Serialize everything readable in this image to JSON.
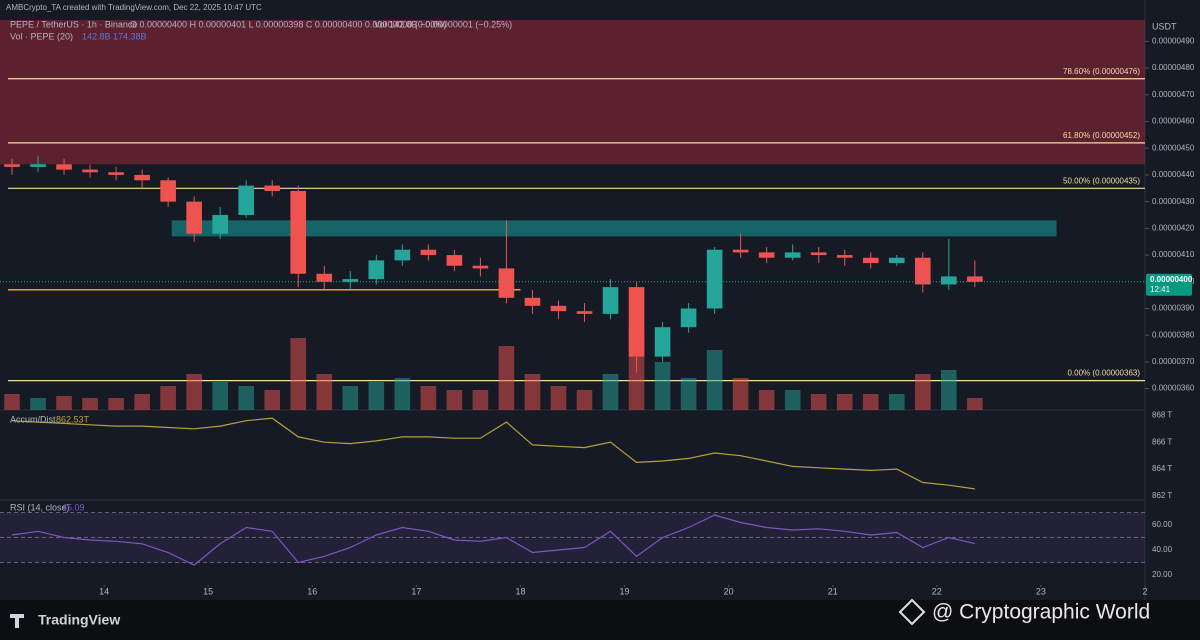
{
  "chart_data": {
    "type": "candlestick",
    "attribution": "AMBCrypto_TA created with TradingView.com, Dec 22, 2025 10:47 UTC",
    "symbol": "PEPE / TetherUS · 1h · Binance",
    "ohlc_header": "O 0.00000400 H 0.00000401 L 0.00000398 C 0.00000400 0.00000000 (0.00%)",
    "vol_header": "Vol 142.8B −0.00000001 (−0.25%)",
    "vol_legend": "Vol · PEPE (20)",
    "vol_legend_values": "142.8B 174.38B",
    "currency": "USDT",
    "colors": {
      "up": "#26a69a",
      "down": "#ef5350",
      "accum": "#b8a13a",
      "rsi": "#7e57c2"
    },
    "xlim": [
      13,
      24
    ],
    "xticks": [
      14,
      15,
      16,
      17,
      18,
      19,
      20,
      21,
      22,
      23,
      {
        "value": 24,
        "label": "2"
      }
    ],
    "ylim": [
      3.52e-06,
      4.98e-06
    ],
    "yticks": [
      {
        "value": 4.9e-06,
        "label": "0.00000490"
      },
      {
        "value": 4.8e-06,
        "label": "0.00000480"
      },
      {
        "value": 4.7e-06,
        "label": "0.00000470"
      },
      {
        "value": 4.6e-06,
        "label": "0.00000460"
      },
      {
        "value": 4.5e-06,
        "label": "0.00000450"
      },
      {
        "value": 4.4e-06,
        "label": "0.00000440"
      },
      {
        "value": 4.3e-06,
        "label": "0.00000430"
      },
      {
        "value": 4.2e-06,
        "label": "0.00000420"
      },
      {
        "value": 4.1e-06,
        "label": "0.00000410"
      },
      {
        "value": 4e-06,
        "label": "0.00000400"
      },
      {
        "value": 3.9e-06,
        "label": "0.00000390"
      },
      {
        "value": 3.8e-06,
        "label": "0.00000380"
      },
      {
        "value": 3.7e-06,
        "label": "0.00000370"
      },
      {
        "value": 3.6e-06,
        "label": "0.00000360"
      }
    ],
    "x": [
      13,
      13.25,
      13.5,
      13.75,
      14,
      14.25,
      14.5,
      14.75,
      15,
      15.25,
      15.5,
      15.75,
      16,
      16.25,
      16.5,
      16.75,
      17,
      17.25,
      17.5,
      17.75,
      18,
      18.25,
      18.5,
      18.75,
      19,
      19.25,
      19.5,
      19.75,
      20,
      20.25,
      20.5,
      20.75,
      21,
      21.25,
      21.5,
      21.75,
      22,
      22.25
    ],
    "ohlc": [
      [
        4.44e-06,
        4.46e-06,
        4.4e-06,
        4.43e-06
      ],
      [
        4.43e-06,
        4.47e-06,
        4.41e-06,
        4.44e-06
      ],
      [
        4.44e-06,
        4.46e-06,
        4.4e-06,
        4.42e-06
      ],
      [
        4.42e-06,
        4.44e-06,
        4.39e-06,
        4.41e-06
      ],
      [
        4.41e-06,
        4.43e-06,
        4.38e-06,
        4.4e-06
      ],
      [
        4.4e-06,
        4.42e-06,
        4.35e-06,
        4.38e-06
      ],
      [
        4.38e-06,
        4.39e-06,
        4.28e-06,
        4.3e-06
      ],
      [
        4.3e-06,
        4.32e-06,
        4.15e-06,
        4.18e-06
      ],
      [
        4.18e-06,
        4.28e-06,
        4.16e-06,
        4.25e-06
      ],
      [
        4.25e-06,
        4.38e-06,
        4.24e-06,
        4.36e-06
      ],
      [
        4.36e-06,
        4.38e-06,
        4.32e-06,
        4.34e-06
      ],
      [
        4.34e-06,
        4.36e-06,
        3.98e-06,
        4.03e-06
      ],
      [
        4.03e-06,
        4.06e-06,
        3.97e-06,
        4e-06
      ],
      [
        4e-06,
        4.04e-06,
        3.97e-06,
        4.01e-06
      ],
      [
        4.01e-06,
        4.1e-06,
        3.99e-06,
        4.08e-06
      ],
      [
        4.08e-06,
        4.14e-06,
        4.06e-06,
        4.12e-06
      ],
      [
        4.12e-06,
        4.14e-06,
        4.08e-06,
        4.1e-06
      ],
      [
        4.1e-06,
        4.12e-06,
        4.04e-06,
        4.06e-06
      ],
      [
        4.06e-06,
        4.09e-06,
        4.02e-06,
        4.05e-06
      ],
      [
        4.05e-06,
        4.23e-06,
        3.92e-06,
        3.94e-06
      ],
      [
        3.94e-06,
        3.97e-06,
        3.88e-06,
        3.91e-06
      ],
      [
        3.91e-06,
        3.93e-06,
        3.86e-06,
        3.89e-06
      ],
      [
        3.89e-06,
        3.92e-06,
        3.85e-06,
        3.88e-06
      ],
      [
        3.88e-06,
        4.01e-06,
        3.86e-06,
        3.98e-06
      ],
      [
        3.98e-06,
        4e-06,
        3.66e-06,
        3.72e-06
      ],
      [
        3.72e-06,
        3.85e-06,
        3.7e-06,
        3.83e-06
      ],
      [
        3.83e-06,
        3.92e-06,
        3.81e-06,
        3.9e-06
      ],
      [
        3.9e-06,
        4.13e-06,
        3.88e-06,
        4.12e-06
      ],
      [
        4.12e-06,
        4.18e-06,
        4.09e-06,
        4.11e-06
      ],
      [
        4.11e-06,
        4.13e-06,
        4.07e-06,
        4.09e-06
      ],
      [
        4.09e-06,
        4.14e-06,
        4.08e-06,
        4.11e-06
      ],
      [
        4.11e-06,
        4.13e-06,
        4.07e-06,
        4.1e-06
      ],
      [
        4.1e-06,
        4.12e-06,
        4.06e-06,
        4.09e-06
      ],
      [
        4.09e-06,
        4.11e-06,
        4.05e-06,
        4.07e-06
      ],
      [
        4.07e-06,
        4.1e-06,
        4.06e-06,
        4.09e-06
      ],
      [
        4.09e-06,
        4.11e-06,
        3.96e-06,
        3.99e-06
      ],
      [
        3.99e-06,
        4.16e-06,
        3.97e-06,
        4.02e-06
      ],
      [
        4.02e-06,
        4.08e-06,
        3.98e-06,
        4e-06
      ]
    ],
    "volume": [
      400,
      300,
      350,
      300,
      300,
      400,
      600,
      900,
      700,
      600,
      500,
      1800,
      900,
      600,
      700,
      800,
      600,
      500,
      500,
      1600,
      900,
      600,
      500,
      900,
      2000,
      1200,
      800,
      1500,
      800,
      500,
      500,
      400,
      400,
      400,
      400,
      900,
      1000,
      300
    ],
    "zones": [
      {
        "from": 4.44e-06,
        "to": 4.98e-06,
        "x0": 13,
        "x1": 24,
        "color": "rgba(178,40,60,0.45)"
      },
      {
        "from": 4.17e-06,
        "to": 4.23e-06,
        "x0": 14.65,
        "x1": 23.15,
        "color": "rgba(20,150,150,0.6)"
      }
    ],
    "support": {
      "value": 3.97e-06,
      "x0": 13,
      "x1": 18,
      "color": "#f0a030"
    },
    "fib_levels": [
      {
        "value": 4.76e-06,
        "label": "78.60% (0.00000476)"
      },
      {
        "value": 4.52e-06,
        "label": "61.80% (0.00000452)"
      },
      {
        "value": 4.35e-06,
        "label": "50.00% (0.00000435)"
      },
      {
        "value": 3.63e-06,
        "label": "0.00% (0.00000363)"
      }
    ],
    "last_price": {
      "value": 4e-06,
      "label": "0.00000400",
      "countdown": "12:41"
    },
    "accum": {
      "legend": "Accum/Dist",
      "legend_value": "862.53T",
      "ylim": [
        861.7,
        868.4
      ],
      "yticks": [
        {
          "value": 868,
          "label": "868 T"
        },
        {
          "value": 866,
          "label": "866 T"
        },
        {
          "value": 864,
          "label": "864 T"
        },
        {
          "value": 862,
          "label": "862 T"
        }
      ],
      "values": [
        867.6,
        867.5,
        867.4,
        867.3,
        867.2,
        867.2,
        867.1,
        867.0,
        867.2,
        867.6,
        867.8,
        866.4,
        866.0,
        865.9,
        866.1,
        866.4,
        866.4,
        866.3,
        866.3,
        867.5,
        865.8,
        865.7,
        865.6,
        866.0,
        864.5,
        864.6,
        864.8,
        865.2,
        865.0,
        864.6,
        864.2,
        864.1,
        864.0,
        863.9,
        864.0,
        863.0,
        862.8,
        862.53
      ]
    },
    "rsi": {
      "legend": "RSI (14, close)",
      "legend_value": "45.09",
      "ylim": [
        12,
        80
      ],
      "yticks": [
        {
          "value": 60,
          "label": "60.00"
        },
        {
          "value": 40,
          "label": "40.00"
        },
        {
          "value": 20,
          "label": "20.00"
        }
      ],
      "bands": [
        70,
        50,
        30
      ],
      "values": [
        52,
        55,
        50,
        48,
        47,
        45,
        38,
        28,
        45,
        58,
        55,
        30,
        35,
        42,
        52,
        58,
        55,
        48,
        47,
        50,
        38,
        40,
        42,
        55,
        35,
        50,
        58,
        68,
        62,
        58,
        56,
        57,
        55,
        52,
        54,
        42,
        50,
        45.09
      ]
    },
    "brand": "TradingView",
    "watermark": "@ Cryptographic World"
  }
}
